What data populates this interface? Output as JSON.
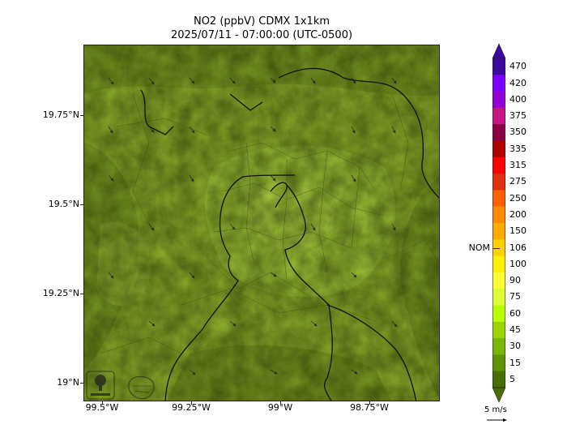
{
  "title": {
    "line1": "NO2 (ppbV) CDMX 1x1km",
    "line2": "2025/07/11 - 07:00:00 (UTC-0500)"
  },
  "map": {
    "lat_ticks": [
      "19.75°N",
      "19.5°N",
      "19.25°N",
      "19°N"
    ],
    "lon_ticks": [
      "99.5°W",
      "99.25°W",
      "99°W",
      "98.75°W"
    ],
    "logos": [
      "sedema-logo",
      "cdmx-map-logo"
    ]
  },
  "colorbar": {
    "labels": [
      "470",
      "420",
      "400",
      "375",
      "350",
      "335",
      "315",
      "275",
      "250",
      "200",
      "150",
      "106",
      "100",
      "90",
      "75",
      "60",
      "45",
      "30",
      "15",
      "5"
    ],
    "colors": [
      "#3c0aa0",
      "#7a00ff",
      "#9400d3",
      "#c71585",
      "#8b0045",
      "#b00000",
      "#ff0000",
      "#e03010",
      "#ff6000",
      "#ff8a00",
      "#ffaa00",
      "#ffd000",
      "#fff000",
      "#ffff33",
      "#ddff33",
      "#b8ff00",
      "#99d600",
      "#7ab800",
      "#5e9400",
      "#496e00"
    ],
    "nom_label": "NOM",
    "nom_value": 106
  },
  "wind_legend": {
    "label": "5 m/s"
  }
}
